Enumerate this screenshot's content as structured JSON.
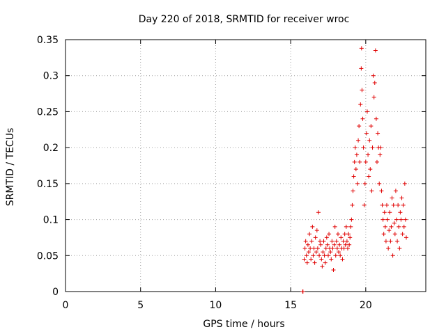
{
  "chart_data": {
    "type": "scatter",
    "title": "Day 220 of 2018, SRMTID for receiver wroc",
    "xlabel": "GPS time / hours",
    "ylabel": "SRMTID / TECUs",
    "xlim": [
      0,
      24
    ],
    "ylim": [
      0,
      0.35
    ],
    "x_ticks": [
      "0",
      "5",
      "10",
      "15",
      "20"
    ],
    "x_tick_values": [
      0,
      5,
      10,
      15,
      20
    ],
    "y_ticks": [
      "0",
      "0.05",
      "0.1",
      "0.15",
      "0.2",
      "0.25",
      "0.3",
      "0.35"
    ],
    "y_tick_values": [
      0,
      0.05,
      0.1,
      0.15,
      0.2,
      0.25,
      0.3,
      0.35
    ],
    "grid": true,
    "marker": "+",
    "color": "#e00000",
    "series": [
      {
        "name": "SRMTID",
        "points": [
          [
            15.8,
            0.0
          ],
          [
            15.82,
            0.0
          ],
          [
            15.9,
            0.045
          ],
          [
            15.95,
            0.06
          ],
          [
            16.0,
            0.07
          ],
          [
            16.05,
            0.05
          ],
          [
            16.1,
            0.04
          ],
          [
            16.15,
            0.065
          ],
          [
            16.2,
            0.055
          ],
          [
            16.25,
            0.08
          ],
          [
            16.3,
            0.06
          ],
          [
            16.35,
            0.045
          ],
          [
            16.4,
            0.07
          ],
          [
            16.45,
            0.09
          ],
          [
            16.5,
            0.05
          ],
          [
            16.55,
            0.06
          ],
          [
            16.6,
            0.04
          ],
          [
            16.65,
            0.075
          ],
          [
            16.7,
            0.055
          ],
          [
            16.75,
            0.085
          ],
          [
            16.8,
            0.06
          ],
          [
            16.85,
            0.11
          ],
          [
            16.9,
            0.05
          ],
          [
            16.95,
            0.07
          ],
          [
            17.0,
            0.065
          ],
          [
            17.05,
            0.045
          ],
          [
            17.1,
            0.035
          ],
          [
            17.15,
            0.055
          ],
          [
            17.2,
            0.07
          ],
          [
            17.25,
            0.05
          ],
          [
            17.3,
            0.04
          ],
          [
            17.35,
            0.06
          ],
          [
            17.4,
            0.075
          ],
          [
            17.45,
            0.065
          ],
          [
            17.5,
            0.05
          ],
          [
            17.55,
            0.08
          ],
          [
            17.6,
            0.06
          ],
          [
            17.65,
            0.055
          ],
          [
            17.7,
            0.045
          ],
          [
            17.75,
            0.07
          ],
          [
            17.8,
            0.06
          ],
          [
            17.85,
            0.03
          ],
          [
            17.9,
            0.065
          ],
          [
            17.95,
            0.09
          ],
          [
            18.0,
            0.05
          ],
          [
            18.05,
            0.07
          ],
          [
            18.1,
            0.06
          ],
          [
            18.15,
            0.08
          ],
          [
            18.2,
            0.055
          ],
          [
            18.25,
            0.065
          ],
          [
            18.3,
            0.05
          ],
          [
            18.35,
            0.075
          ],
          [
            18.4,
            0.06
          ],
          [
            18.45,
            0.045
          ],
          [
            18.5,
            0.07
          ],
          [
            18.55,
            0.06
          ],
          [
            18.6,
            0.08
          ],
          [
            18.65,
            0.065
          ],
          [
            18.7,
            0.09
          ],
          [
            18.75,
            0.07
          ],
          [
            18.8,
            0.06
          ],
          [
            18.85,
            0.08
          ],
          [
            18.9,
            0.065
          ],
          [
            18.95,
            0.075
          ],
          [
            19.0,
            0.09
          ],
          [
            19.05,
            0.1
          ],
          [
            19.1,
            0.12
          ],
          [
            19.15,
            0.14
          ],
          [
            19.2,
            0.16
          ],
          [
            19.25,
            0.18
          ],
          [
            19.3,
            0.2
          ],
          [
            19.35,
            0.17
          ],
          [
            19.4,
            0.19
          ],
          [
            19.45,
            0.15
          ],
          [
            19.5,
            0.21
          ],
          [
            19.55,
            0.23
          ],
          [
            19.6,
            0.18
          ],
          [
            19.65,
            0.26
          ],
          [
            19.7,
            0.31
          ],
          [
            19.72,
            0.338
          ],
          [
            19.75,
            0.28
          ],
          [
            19.8,
            0.24
          ],
          [
            19.85,
            0.2
          ],
          [
            19.9,
            0.12
          ],
          [
            19.95,
            0.15
          ],
          [
            20.0,
            0.18
          ],
          [
            20.05,
            0.22
          ],
          [
            20.1,
            0.25
          ],
          [
            20.15,
            0.19
          ],
          [
            20.2,
            0.16
          ],
          [
            20.25,
            0.21
          ],
          [
            20.3,
            0.17
          ],
          [
            20.35,
            0.23
          ],
          [
            20.4,
            0.14
          ],
          [
            20.45,
            0.2
          ],
          [
            20.5,
            0.3
          ],
          [
            20.55,
            0.27
          ],
          [
            20.6,
            0.29
          ],
          [
            20.65,
            0.335
          ],
          [
            20.7,
            0.24
          ],
          [
            20.75,
            0.18
          ],
          [
            20.8,
            0.22
          ],
          [
            20.85,
            0.2
          ],
          [
            20.9,
            0.15
          ],
          [
            20.95,
            0.19
          ],
          [
            21.0,
            0.2
          ],
          [
            21.05,
            0.14
          ],
          [
            21.1,
            0.12
          ],
          [
            21.15,
            0.1
          ],
          [
            21.2,
            0.08
          ],
          [
            21.25,
            0.11
          ],
          [
            21.3,
            0.09
          ],
          [
            21.35,
            0.07
          ],
          [
            21.4,
            0.12
          ],
          [
            21.45,
            0.1
          ],
          [
            21.5,
            0.06
          ],
          [
            21.55,
            0.085
          ],
          [
            21.6,
            0.11
          ],
          [
            21.65,
            0.07
          ],
          [
            21.7,
            0.09
          ],
          [
            21.75,
            0.13
          ],
          [
            21.8,
            0.05
          ],
          [
            21.85,
            0.12
          ],
          [
            21.9,
            0.095
          ],
          [
            21.95,
            0.08
          ],
          [
            22.0,
            0.14
          ],
          [
            22.05,
            0.1
          ],
          [
            22.1,
            0.07
          ],
          [
            22.15,
            0.12
          ],
          [
            22.2,
            0.09
          ],
          [
            22.25,
            0.06
          ],
          [
            22.3,
            0.11
          ],
          [
            22.35,
            0.1
          ],
          [
            22.4,
            0.13
          ],
          [
            22.45,
            0.08
          ],
          [
            22.5,
            0.12
          ],
          [
            22.55,
            0.09
          ],
          [
            22.6,
            0.15
          ],
          [
            22.65,
            0.1
          ],
          [
            22.7,
            0.075
          ]
        ]
      }
    ]
  }
}
